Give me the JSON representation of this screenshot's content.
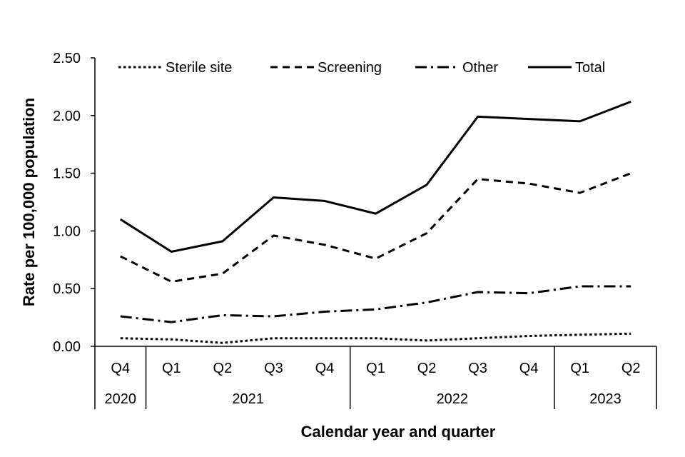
{
  "chart_data": {
    "type": "line",
    "title": "",
    "xlabel": "Calendar year and quarter",
    "ylabel": "Rate per 100,000 population",
    "ylim": [
      0,
      2.5
    ],
    "yticks": [
      "0.00",
      "0.50",
      "1.00",
      "1.50",
      "2.00",
      "2.50"
    ],
    "grid": false,
    "legend_position": "top",
    "categories": [
      "Q4",
      "Q1",
      "Q2",
      "Q3",
      "Q4",
      "Q1",
      "Q2",
      "Q3",
      "Q4",
      "Q1",
      "Q2"
    ],
    "year_groups": [
      {
        "label": "2020",
        "span": 1
      },
      {
        "label": "2021",
        "span": 4
      },
      {
        "label": "2022",
        "span": 4
      },
      {
        "label": "2023",
        "span": 2
      }
    ],
    "series": [
      {
        "name": "Sterile site",
        "dash": "dotted",
        "values": [
          0.07,
          0.06,
          0.03,
          0.07,
          0.07,
          0.07,
          0.05,
          0.07,
          0.09,
          0.1,
          0.11
        ]
      },
      {
        "name": "Screening",
        "dash": "dashed",
        "values": [
          0.78,
          0.56,
          0.63,
          0.96,
          0.88,
          0.76,
          0.98,
          1.45,
          1.41,
          1.33,
          1.5
        ]
      },
      {
        "name": "Other",
        "dash": "dashdot",
        "values": [
          0.26,
          0.21,
          0.27,
          0.26,
          0.3,
          0.32,
          0.38,
          0.47,
          0.46,
          0.52,
          0.52
        ]
      },
      {
        "name": "Total",
        "dash": "solid",
        "values": [
          1.1,
          0.82,
          0.91,
          1.29,
          1.26,
          1.15,
          1.4,
          1.99,
          1.97,
          1.95,
          2.12
        ]
      }
    ]
  }
}
